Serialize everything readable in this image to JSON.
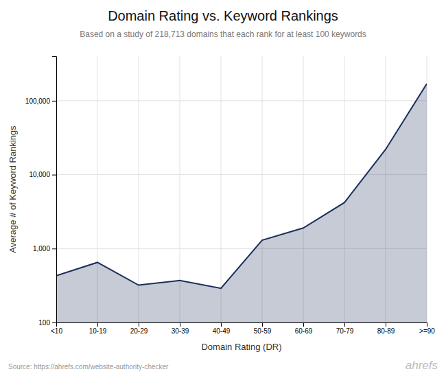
{
  "chart_data": {
    "type": "area",
    "title": "Domain Rating vs. Keyword Rankings",
    "subtitle": "Based on a study of 218,713 domains that each rank for at least 100 keywords",
    "x_label": "Domain Rating (DR)",
    "y_label": "Average # of Keyword Rankings",
    "annotations": [
      "Source: https://ahrefs.com/website-authority-checker",
      "ahrefs"
    ],
    "categories": [
      "<10",
      "10-19",
      "20-29",
      "30-39",
      "40-49",
      "50-59",
      "60-69",
      "70-79",
      "80-89",
      ">=90"
    ],
    "values": [
      430,
      650,
      320,
      370,
      290,
      1300,
      1900,
      4200,
      22000,
      170000
    ],
    "color": "#1a2e5a",
    "log": "y",
    "ylim": [
      100,
      400000
    ],
    "yticks": [
      100,
      {
        "value": 1000,
        "label": "1,000"
      },
      {
        "value": 10000,
        "label": "10,000"
      },
      {
        "value": 100000,
        "label": "100,000"
      }
    ],
    "grid": true
  }
}
